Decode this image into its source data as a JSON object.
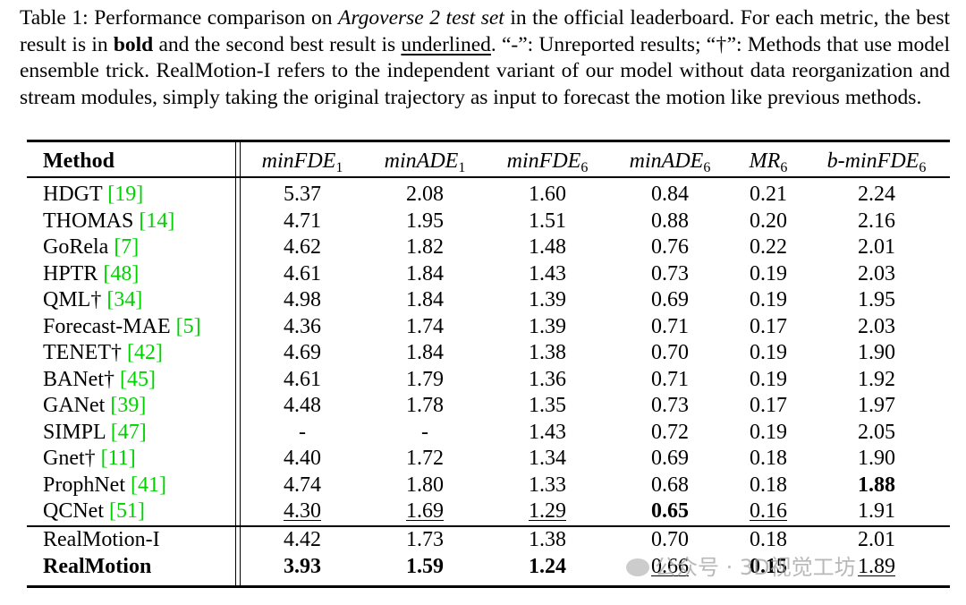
{
  "caption": {
    "p1": "Table 1: Performance comparison on ",
    "p2": "Argoverse 2 test set",
    "p3": " in the official leaderboard. For each metric, the best result is in ",
    "p4": "bold",
    "p5": " and the second best result is ",
    "p6": "underlined",
    "p7": ". “-”: Unreported results; “†”: Methods that use model ensemble trick. RealMotion-I refers to the independent variant of our model without data reorganization and stream modules, simply taking the original trajectory as input to forecast the motion like previous methods."
  },
  "header": {
    "method": "Method",
    "cols": [
      {
        "base": "minFDE",
        "sub": "1"
      },
      {
        "base": "minADE",
        "sub": "1"
      },
      {
        "base": "minFDE",
        "sub": "6"
      },
      {
        "base": "minADE",
        "sub": "6"
      },
      {
        "base": "MR",
        "sub": "6"
      },
      {
        "base": "b-minFDE",
        "sub": "6"
      }
    ]
  },
  "rows": [
    {
      "name": "HDGT ",
      "cite": "[19]",
      "vals": [
        "5.37",
        "2.08",
        "1.60",
        "0.84",
        "0.21",
        "2.24"
      ]
    },
    {
      "name": "THOMAS ",
      "cite": "[14]",
      "vals": [
        "4.71",
        "1.95",
        "1.51",
        "0.88",
        "0.20",
        "2.16"
      ]
    },
    {
      "name": "GoRela ",
      "cite": "[7]",
      "vals": [
        "4.62",
        "1.82",
        "1.48",
        "0.76",
        "0.22",
        "2.01"
      ]
    },
    {
      "name": "HPTR ",
      "cite": "[48]",
      "vals": [
        "4.61",
        "1.84",
        "1.43",
        "0.73",
        "0.19",
        "2.03"
      ]
    },
    {
      "name": "QML† ",
      "cite": "[34]",
      "vals": [
        "4.98",
        "1.84",
        "1.39",
        "0.69",
        "0.19",
        "1.95"
      ]
    },
    {
      "name": "Forecast-MAE ",
      "cite": "[5]",
      "vals": [
        "4.36",
        "1.74",
        "1.39",
        "0.71",
        "0.17",
        "2.03"
      ]
    },
    {
      "name": "TENET† ",
      "cite": "[42]",
      "vals": [
        "4.69",
        "1.84",
        "1.38",
        "0.70",
        "0.19",
        "1.90"
      ]
    },
    {
      "name": "BANet† ",
      "cite": "[45]",
      "vals": [
        "4.61",
        "1.79",
        "1.36",
        "0.71",
        "0.19",
        "1.92"
      ]
    },
    {
      "name": "GANet ",
      "cite": "[39]",
      "vals": [
        "4.48",
        "1.78",
        "1.35",
        "0.73",
        "0.17",
        "1.97"
      ]
    },
    {
      "name": "SIMPL ",
      "cite": "[47]",
      "vals": [
        "-",
        "-",
        "1.43",
        "0.72",
        "0.19",
        "2.05"
      ]
    },
    {
      "name": "Gnet† ",
      "cite": "[11]",
      "vals": [
        "4.40",
        "1.72",
        "1.34",
        "0.69",
        "0.18",
        "1.90"
      ]
    },
    {
      "name": "ProphNet ",
      "cite": "[41]",
      "vals": [
        "4.74",
        "1.80",
        "1.33",
        "0.68",
        "0.18",
        "1.88"
      ],
      "bold": [
        5
      ]
    },
    {
      "name": "QCNet ",
      "cite": "[51]",
      "vals": [
        "4.30",
        "1.69",
        "1.29",
        "0.65",
        "0.16",
        "1.91"
      ],
      "bold": [
        3
      ],
      "underline": [
        0,
        1,
        2,
        4
      ]
    },
    {
      "name": "RealMotion-I",
      "cite": "",
      "vals": [
        "4.42",
        "1.73",
        "1.38",
        "0.70",
        "0.18",
        "2.01"
      ]
    },
    {
      "name": "RealMotion",
      "cite": "",
      "vals": [
        "3.93",
        "1.59",
        "1.24",
        "0.66",
        "0.15",
        "1.89"
      ],
      "nameBold": true,
      "bold": [
        0,
        1,
        2,
        4
      ],
      "underline": [
        3,
        5
      ]
    }
  ],
  "watermark": "公众号 · 3D视觉工坊"
}
